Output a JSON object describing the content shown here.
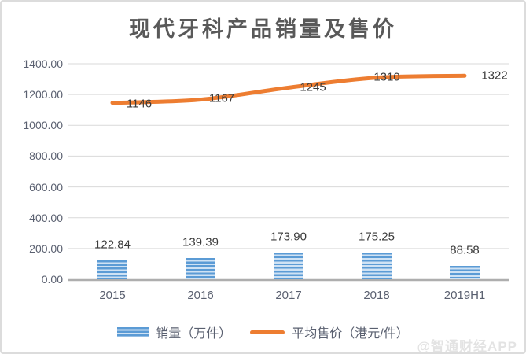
{
  "title": "现代牙科产品销量及售价",
  "watermark": "@智通财经APP",
  "colors": {
    "bar_stripe_dark": "#5b9bd5",
    "bar_stripe_light": "#cfe2f4",
    "line": "#ed7d31",
    "gridline": "#d9d9d9",
    "axis_line": "#aeaeae",
    "axis_text": "#5a6070",
    "value_label_text": "#3b3b3b",
    "title_text": "#595959",
    "watermark_text": "#e3e3e3"
  },
  "chart_data": {
    "type": "combo",
    "title": "现代牙科产品销量及售价",
    "categories": [
      "2015",
      "2016",
      "2017",
      "2018",
      "2019H1"
    ],
    "series": [
      {
        "name": "销量（万件）",
        "type": "bar",
        "values": [
          122.84,
          139.39,
          173.9,
          175.25,
          88.58
        ],
        "color": "#5b9bd5",
        "pattern": "horizontal-stripes",
        "value_label_decimals": 2
      },
      {
        "name": "平均售价（港元/件）",
        "type": "line",
        "values": [
          1146,
          1167,
          1245,
          1310,
          1322
        ],
        "color": "#ed7d31",
        "smooth": true,
        "value_label_decimals": 0
      }
    ],
    "xlabel": "",
    "ylabel": "",
    "ylim": [
      0,
      1400
    ],
    "ytick_step": 200,
    "ytick_decimals": 2,
    "grid": true,
    "legend_position": "bottom",
    "value_labels": true
  }
}
